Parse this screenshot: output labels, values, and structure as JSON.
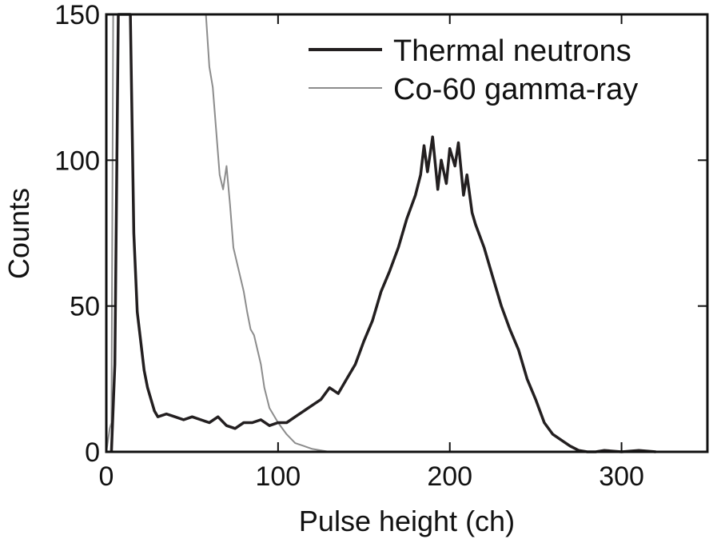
{
  "chart_data": {
    "type": "line",
    "xlabel": "Pulse height (ch)",
    "ylabel": "Counts",
    "xlim": [
      0,
      350
    ],
    "ylim": [
      0,
      150
    ],
    "xticks": [
      0,
      100,
      200,
      300
    ],
    "yticks": [
      0,
      50,
      100,
      150
    ],
    "legend_position": "top-right",
    "grid": false,
    "series": [
      {
        "name": "Thermal neutrons",
        "color": "#231f20",
        "x": [
          3,
          5,
          7,
          10,
          12,
          14,
          16,
          18,
          20,
          22,
          24,
          26,
          28,
          30,
          35,
          40,
          45,
          50,
          55,
          60,
          65,
          70,
          75,
          80,
          85,
          90,
          95,
          100,
          105,
          110,
          115,
          120,
          125,
          130,
          135,
          140,
          145,
          150,
          155,
          160,
          165,
          170,
          175,
          180,
          183,
          185,
          187,
          190,
          193,
          195,
          198,
          200,
          203,
          205,
          208,
          210,
          213,
          215,
          220,
          225,
          230,
          235,
          240,
          245,
          250,
          255,
          260,
          265,
          270,
          275,
          280,
          285,
          290,
          300,
          310,
          320
        ],
        "y": [
          0,
          30,
          150,
          150,
          150,
          150,
          75,
          48,
          38,
          28,
          22,
          18,
          14,
          12,
          13,
          12,
          11,
          12,
          11,
          10,
          12,
          9,
          8,
          10,
          10,
          11,
          9,
          10,
          10,
          12,
          14,
          16,
          18,
          22,
          20,
          25,
          30,
          38,
          45,
          55,
          62,
          70,
          80,
          88,
          95,
          105,
          96,
          108,
          90,
          100,
          92,
          104,
          98,
          106,
          88,
          95,
          82,
          78,
          70,
          60,
          50,
          42,
          35,
          25,
          18,
          10,
          6,
          4,
          2,
          0.5,
          0,
          0,
          0.5,
          0,
          0.5,
          0
        ]
      },
      {
        "name": "Co-60 gamma-ray",
        "color": "#8c8c8c",
        "x": [
          0,
          2,
          3,
          4,
          5,
          8,
          10,
          15,
          20,
          30,
          40,
          50,
          58,
          60,
          62,
          64,
          66,
          68,
          70,
          72,
          74,
          76,
          78,
          80,
          82,
          84,
          86,
          88,
          90,
          92,
          95,
          98,
          100,
          105,
          110,
          115,
          120,
          125,
          130,
          140,
          150,
          160
        ],
        "y": [
          0,
          8,
          10,
          150,
          150,
          150,
          150,
          150,
          150,
          150,
          150,
          150,
          150,
          132,
          125,
          110,
          95,
          90,
          98,
          85,
          70,
          65,
          60,
          55,
          48,
          42,
          40,
          35,
          30,
          22,
          15,
          12,
          10,
          6,
          3,
          2,
          1,
          0.5,
          0,
          0,
          0,
          0
        ]
      }
    ]
  }
}
